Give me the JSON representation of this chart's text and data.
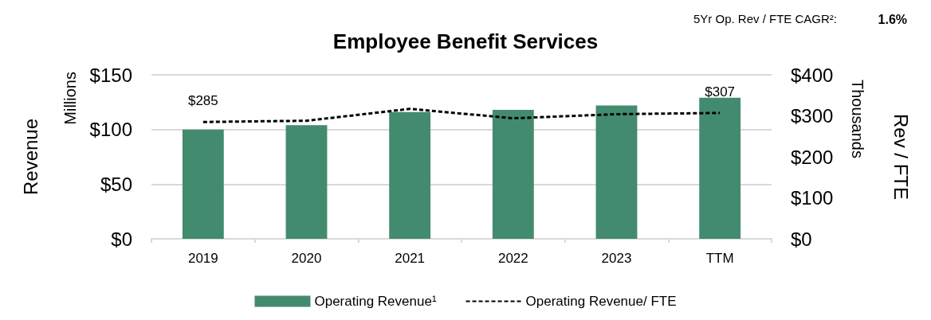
{
  "chart_data": {
    "type": "bar",
    "title": "Employee Benefit Services",
    "categories": [
      "2019",
      "2020",
      "2021",
      "2022",
      "2023",
      "TTM"
    ],
    "series": [
      {
        "name": "Operating Revenue¹",
        "color": "#438b6f",
        "values": [
          100,
          104,
          116,
          118,
          122,
          129
        ]
      },
      {
        "name": "Operating Revenue/ FTE",
        "type": "line",
        "axis": "y2",
        "color": "#000000",
        "line_style": "dashed",
        "marker": "none",
        "values": [
          285,
          288,
          317,
          294,
          304,
          307
        ],
        "value_labels": [
          "$285",
          null,
          null,
          null,
          null,
          "$307"
        ]
      }
    ],
    "ylabel": "Revenue",
    "y2label": "Rev / FTE",
    "ylim": [
      0,
      150
    ],
    "yticks": [
      {
        "value": 0,
        "label": "$0"
      },
      {
        "value": 50,
        "label": "$50"
      },
      {
        "value": 100,
        "label": "$100"
      },
      {
        "value": 150,
        "label": "$150"
      }
    ],
    "y2lim": [
      0,
      400
    ],
    "y2ticks": [
      {
        "value": 0,
        "label": "$0"
      },
      {
        "value": 100,
        "label": "$100"
      },
      {
        "value": 200,
        "label": "$200"
      },
      {
        "value": 300,
        "label": "$300"
      },
      {
        "value": 400,
        "label": "$400"
      }
    ],
    "annotations": [
      "5Yr Op. Rev / FTE CAGR²:",
      "1.6%",
      "Millions",
      "Thousands"
    ],
    "grid": "y",
    "legend": "bottom"
  }
}
